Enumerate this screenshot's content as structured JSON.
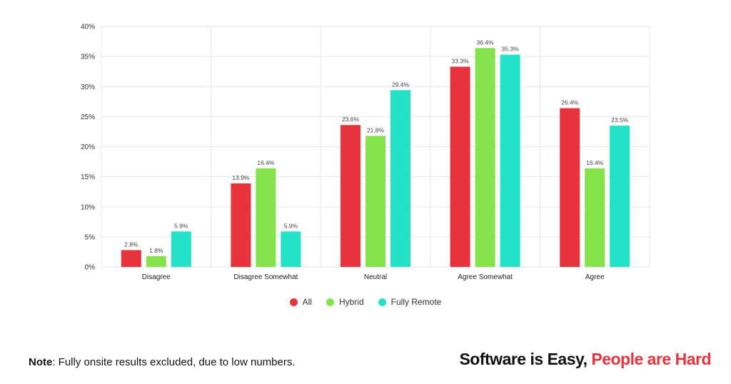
{
  "chart_data": {
    "type": "bar",
    "categories": [
      "Disagree",
      "Disagree Somewhat",
      "Neutral",
      "Agree Somewhat",
      "Agree"
    ],
    "series": [
      {
        "name": "All",
        "values": [
          2.8,
          13.9,
          23.6,
          33.3,
          26.4
        ],
        "labels": [
          "2.8%",
          "13.9%",
          "23.6%",
          "33.3%",
          "26.4%"
        ]
      },
      {
        "name": "Hybrid",
        "values": [
          1.8,
          16.4,
          21.8,
          36.4,
          16.4
        ],
        "labels": [
          "1.8%",
          "16.4%",
          "21.8%",
          "36.4%",
          "16.4%"
        ]
      },
      {
        "name": "Fully Remote",
        "values": [
          5.9,
          5.9,
          29.4,
          35.3,
          23.5
        ],
        "labels": [
          "5.9%",
          "5.9%",
          "29.4%",
          "35.3%",
          "23.5%"
        ]
      }
    ],
    "colors": [
      "#e8323c",
      "#84e34a",
      "#22e3c7"
    ],
    "ylim": [
      0,
      40
    ],
    "yticks": [
      0,
      5,
      10,
      15,
      20,
      25,
      30,
      35,
      40
    ],
    "ytick_labels": [
      "0%",
      "5%",
      "10%",
      "15%",
      "20%",
      "25%",
      "30%",
      "35%",
      "40%"
    ],
    "grid": true,
    "legend_position": "bottom-center"
  },
  "legend": {
    "items": [
      {
        "label": "All",
        "color": "#e8323c"
      },
      {
        "label": "Hybrid",
        "color": "#84e34a"
      },
      {
        "label": "Fully Remote",
        "color": "#22e3c7"
      }
    ]
  },
  "note": {
    "prefix": "Note",
    "text": ": Fully onsite results excluded, due to low numbers."
  },
  "brand": {
    "part1": "Software is Easy,",
    "part2": "People are Hard"
  }
}
